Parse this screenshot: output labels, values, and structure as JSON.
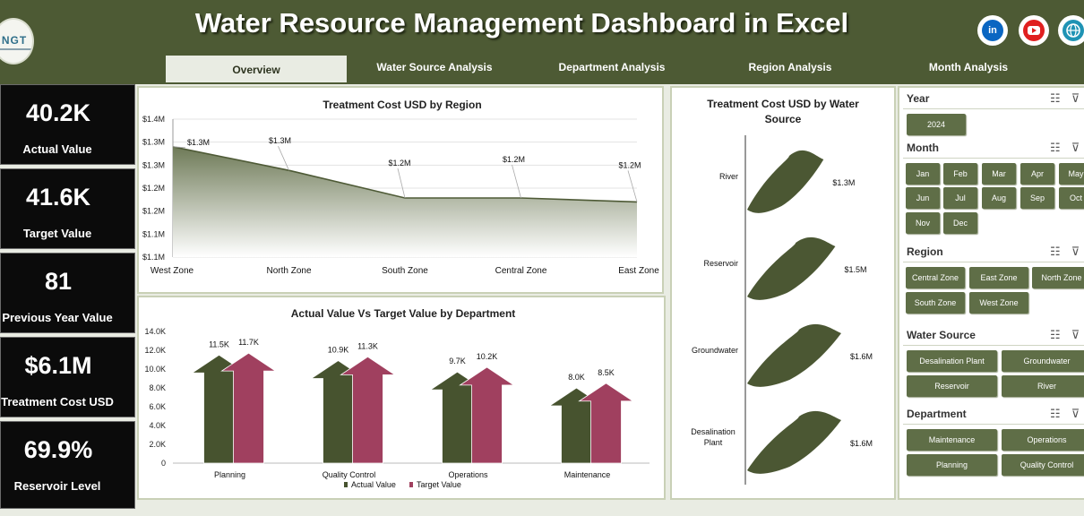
{
  "app": {
    "title": "Water Resource Management Dashboard in Excel",
    "logo_text": "NGT",
    "social": [
      "linkedin-icon",
      "youtube-icon",
      "globe-icon"
    ]
  },
  "tabs": [
    {
      "label": "Overview",
      "active": true
    },
    {
      "label": "Water Source Analysis",
      "active": false
    },
    {
      "label": "Department Analysis",
      "active": false
    },
    {
      "label": "Region Analysis",
      "active": false
    },
    {
      "label": "Month Analysis",
      "active": false
    }
  ],
  "kpis": [
    {
      "value": "40.2K",
      "label": "Actual Value"
    },
    {
      "value": "41.6K",
      "label": "Target Value"
    },
    {
      "value": "81",
      "label": "Previous Year Value"
    },
    {
      "value": "$6.1M",
      "label": "Treatment Cost USD"
    },
    {
      "value": "69.9%",
      "label": "Reservoir Level"
    }
  ],
  "charts": {
    "region_title": "Treatment Cost USD by Region",
    "dept_title": "Actual Value Vs Target Value by Department",
    "source_title_line1": "Treatment Cost USD by Water",
    "source_title_line2": "Source"
  },
  "chart_data": [
    {
      "type": "area",
      "title": "Treatment Cost USD by Region",
      "categories": [
        "West Zone",
        "North Zone",
        "South Zone",
        "Central Zone",
        "East Zone"
      ],
      "values": [
        1.33,
        1.27,
        1.2,
        1.2,
        1.19
      ],
      "data_labels": [
        "$1.3M",
        "$1.3M",
        "$1.2M",
        "$1.2M",
        "$1.2M"
      ],
      "yticks": [
        "$1.4M",
        "$1.3M",
        "$1.3M",
        "$1.2M",
        "$1.2M",
        "$1.1M",
        "$1.1M"
      ],
      "ylim": [
        1.05,
        1.4
      ],
      "colors": {
        "line": "#4e5a36",
        "fill_top": "#6e7a57",
        "fill_bottom": "#ffffff"
      }
    },
    {
      "type": "bar",
      "title": "Actual Value Vs Target Value by Department",
      "categories": [
        "Planning",
        "Quality Control",
        "Operations",
        "Maintenance"
      ],
      "series": [
        {
          "name": "Actual Value",
          "values": [
            11.5,
            10.9,
            9.7,
            8.0
          ],
          "labels": [
            "11.5K",
            "10.9K",
            "9.7K",
            "8.0K"
          ],
          "color": "#47532f"
        },
        {
          "name": "Target Value",
          "values": [
            11.7,
            11.3,
            10.2,
            8.5
          ],
          "labels": [
            "11.7K",
            "11.3K",
            "10.2K",
            "8.5K"
          ],
          "color": "#a0405f"
        }
      ],
      "yticks": [
        "14.0K",
        "12.0K",
        "10.0K",
        "8.0K",
        "6.0K",
        "4.0K",
        "2.0K",
        "0"
      ],
      "ylim": [
        0,
        14
      ]
    },
    {
      "type": "bar",
      "title": "Treatment Cost USD by Water Source",
      "categories": [
        "River",
        "Reservoir",
        "Groundwater",
        "Desalination Plant"
      ],
      "values": [
        1.3,
        1.5,
        1.6,
        1.6
      ],
      "data_labels": [
        "$1.3M",
        "$1.5M",
        "$1.6M",
        "$1.6M"
      ],
      "colors": {
        "bar": "#4b5733"
      }
    }
  ],
  "slicers": {
    "year": {
      "title": "Year",
      "items": [
        "2024"
      ]
    },
    "month": {
      "title": "Month",
      "items": [
        "Jan",
        "Feb",
        "Mar",
        "Apr",
        "May",
        "Jun",
        "Jul",
        "Aug",
        "Sep",
        "Oct",
        "Nov",
        "Dec"
      ]
    },
    "region": {
      "title": "Region",
      "items": [
        "Central Zone",
        "East Zone",
        "North Zone",
        "South Zone",
        "West Zone"
      ]
    },
    "water_source": {
      "title": "Water Source",
      "items": [
        "Desalination Plant",
        "Groundwater",
        "Reservoir",
        "River"
      ]
    },
    "department": {
      "title": "Department",
      "items": [
        "Maintenance",
        "Operations",
        "Planning",
        "Quality Control"
      ]
    }
  },
  "icons": {
    "multiselect": "☷",
    "clear_filter": "⊽"
  }
}
